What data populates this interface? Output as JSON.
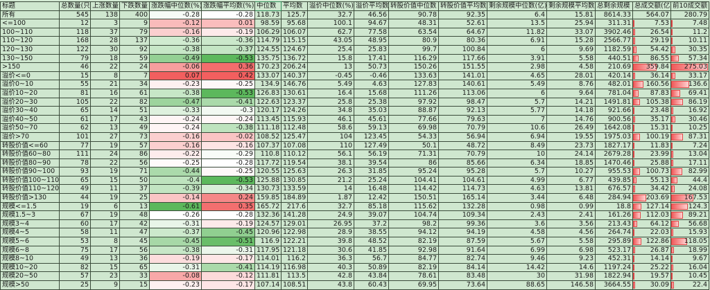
{
  "columns": [
    "标题",
    "总数量(只)",
    "上涨数量",
    "下跌数量",
    "涨跌幅中位数(%)",
    "涨跌幅平均数(%)",
    "中位数",
    "平均数",
    "溢价中位数(%)",
    "溢价平均数",
    "转股价值中位数",
    "转股价值平均数",
    "剩余规模中位数(亿)",
    "剩余规模平均数",
    "总剩余规模",
    "总成交额(亿)",
    "前10成交额"
  ],
  "heatmap_colors": {
    "low": "#5cb85c",
    "mid": "#ffffff",
    "high": "#f25f5f"
  },
  "databar_color": "#f05a5a",
  "rows": [
    [
      "所有",
      545,
      138,
      400,
      -0.28,
      -0.28,
      118.73,
      125.7,
      32.7,
      46.56,
      90.78,
      92.35,
      6.4,
      15.81,
      8614.33,
      564.07,
      280.79
    ],
    [
      "<=100",
      12,
      3,
      9,
      -0.12,
      0.01,
      98.59,
      95.68,
      100.1,
      94.67,
      48.31,
      52.61,
      13.5,
      25.94,
      311.31,
      7.53,
      7.48
    ],
    [
      "100~110",
      118,
      37,
      79,
      -0.16,
      -0.19,
      106.29,
      106.07,
      62.7,
      77.58,
      63.54,
      64.67,
      11.82,
      33.07,
      3902.46,
      26.54,
      11.2
    ],
    [
      "110~120",
      168,
      28,
      137,
      -0.36,
      -0.36,
      114.79,
      115.15,
      43.05,
      48.95,
      80.9,
      80.36,
      6.91,
      15.28,
      2566.77,
      29.19,
      10.11
    ],
    [
      "120~130",
      122,
      30,
      92,
      -0.38,
      -0.37,
      124.55,
      124.67,
      25.4,
      25.83,
      99.7,
      100.84,
      6,
      9.69,
      1182.59,
      54.42,
      30.35
    ],
    [
      "130~150",
      79,
      18,
      59,
      -0.49,
      -0.53,
      135.75,
      136.72,
      15.8,
      17.41,
      116.29,
      117.66,
      3.91,
      5.58,
      440.51,
      86.55,
      57.34
    ],
    [
      ">150",
      46,
      22,
      24,
      -0.06,
      0.36,
      170.23,
      206.24,
      13,
      50.73,
      150.26,
      151.55,
      2.98,
      4.58,
      210.69,
      359.84,
      275.03
    ],
    [
      "溢价<=0",
      15,
      8,
      7,
      0.07,
      0.42,
      133.07,
      140.37,
      -0.45,
      -0.46,
      133.63,
      141.01,
      4.65,
      28.01,
      420.14,
      36.14,
      33.17
    ],
    [
      "溢价0~10",
      55,
      21,
      34,
      -0.23,
      -0.25,
      134.9,
      146.76,
      5.49,
      4.63,
      127.83,
      140.61,
      5.49,
      8.76,
      482.01,
      160.56,
      136.6
    ],
    [
      "溢价10~20",
      81,
      16,
      61,
      -0.38,
      -0.53,
      126.83,
      130.61,
      16.4,
      15.68,
      111.26,
      113.06,
      6,
      9.64,
      781.04,
      87.83,
      69.41
    ],
    [
      "溢价20~30",
      105,
      22,
      82,
      -0.47,
      -0.41,
      122.63,
      123.37,
      25.8,
      25.38,
      97.92,
      98.47,
      5.7,
      14.21,
      1491.81,
      105.38,
      86.19
    ],
    [
      "溢价30~40",
      65,
      14,
      51,
      -0.33,
      -0.3,
      120.17,
      124.26,
      34.8,
      35.03,
      88.87,
      92.13,
      5.77,
      14.18,
      921.66,
      23.48,
      16.92
    ],
    [
      "溢价40~50",
      61,
      17,
      43,
      -0.24,
      -0.24,
      113.45,
      115.93,
      46.1,
      45.61,
      77.66,
      79.63,
      7,
      14.76,
      900.56,
      35.17,
      30.46
    ],
    [
      "溢价50~70",
      62,
      13,
      49,
      -0.24,
      -0.38,
      111.18,
      112.48,
      58.6,
      59.13,
      69.98,
      70.79,
      10.6,
      26.49,
      1642.08,
      15.31,
      10.25
    ],
    [
      "溢价>70",
      101,
      27,
      73,
      -0.16,
      -0.02,
      108.52,
      125.47,
      104,
      123.45,
      54.33,
      56.94,
      6.94,
      19.55,
      1975.03,
      100.19,
      87.31
    ],
    [
      "转股价值<=60",
      77,
      19,
      57,
      -0.16,
      -0.16,
      107.37,
      107.08,
      110,
      127.49,
      50.1,
      48.72,
      8.49,
      23.73,
      1827.17,
      11.83,
      7.24
    ],
    [
      "转股价值60~80",
      111,
      24,
      86,
      -0.22,
      -0.29,
      110.8,
      110.12,
      56.1,
      56.19,
      71.31,
      70.79,
      10,
      24.14,
      2679.28,
      23.99,
      13.04
    ],
    [
      "转股价值80~90",
      78,
      22,
      56,
      -0.25,
      -0.28,
      117.72,
      119.54,
      38.1,
      39.54,
      86,
      85.66,
      6.34,
      18.85,
      1470.46,
      25.88,
      17.11
    ],
    [
      "转股价值90~100",
      93,
      19,
      71,
      -0.44,
      -0.25,
      120.55,
      125.63,
      26.3,
      31.85,
      95.24,
      95.28,
      5.7,
      10.27,
      955.53,
      100.73,
      82.99
    ],
    [
      "转股价值100~110",
      65,
      15,
      50,
      -0.4,
      -0.53,
      125.88,
      130.85,
      21.2,
      25.24,
      104.41,
      104.61,
      4.99,
      6.77,
      439.85,
      55.13,
      44.4
    ],
    [
      "转股价值110~120",
      49,
      11,
      37,
      -0.39,
      -0.34,
      130.73,
      133.59,
      14,
      16.48,
      114.42,
      114.73,
      4.63,
      13.81,
      676.57,
      34.42,
      24.08
    ],
    [
      "转股价值>130",
      44,
      19,
      25,
      -0.14,
      0.24,
      159.85,
      184.89,
      1.87,
      12.42,
      150.51,
      165.14,
      3.44,
      6.48,
      284.94,
      203.69,
      167.53
    ],
    [
      "规模<=1.5",
      19,
      6,
      13,
      -0.61,
      0.35,
      165.72,
      217.6,
      32.7,
      85.18,
      115.62,
      132.28,
      0.98,
      0.99,
      18.8,
      127.14,
      124.3
    ],
    [
      "规模1.5~3",
      67,
      19,
      48,
      -0.26,
      -0.28,
      132.36,
      141.28,
      24.9,
      39.07,
      104.74,
      109.34,
      2.43,
      2.41,
      161.26,
      112.03,
      89.21
    ],
    [
      "规模3~4",
      60,
      17,
      42,
      -0.31,
      -0.19,
      124.57,
      129.01,
      26.95,
      37.2,
      98.2,
      99.36,
      3.6,
      3.56,
      213.43,
      64.12,
      56.68
    ],
    [
      "规模4~5",
      58,
      11,
      47,
      -0.37,
      -0.45,
      120.96,
      122.98,
      28.9,
      38.55,
      94.12,
      94.19,
      4.58,
      4.56,
      264.74,
      22.03,
      15.93
    ],
    [
      "规模5~6",
      53,
      8,
      45,
      -0.45,
      -0.51,
      116.9,
      122.21,
      39.8,
      48.52,
      82.19,
      87.59,
      5.67,
      5.58,
      295.89,
      122.86,
      118.05
    ],
    [
      "规模6~8",
      75,
      17,
      56,
      -0.38,
      -0.31,
      117.95,
      121.18,
      30.6,
      41.85,
      92.98,
      91.64,
      6.99,
      6.98,
      523.17,
      26.87,
      18.99
    ],
    [
      "规模8~10",
      49,
      13,
      36,
      -0.19,
      -0.17,
      114.01,
      116.2,
      36.3,
      56.7,
      84.77,
      82.74,
      9.46,
      9.23,
      452.31,
      14.14,
      9.67
    ],
    [
      "规模10~20",
      82,
      15,
      65,
      -0.31,
      -0.41,
      114.19,
      116.98,
      40.3,
      50.89,
      82.19,
      84.14,
      14.42,
      14.6,
      1197.24,
      25.22,
      16.04
    ],
    [
      "规模20~50",
      57,
      23,
      33,
      -0.08,
      -0.12,
      111.81,
      113.5,
      42.8,
      43.84,
      78.61,
      83.48,
      30,
      31.98,
      1822.94,
      19.57,
      10.45
    ],
    [
      "规模>50",
      25,
      9,
      15,
      -0.23,
      -0.17,
      107.14,
      108.51,
      43.8,
      60.43,
      69.95,
      73.64,
      88.65,
      146.58,
      3664.55,
      30.09,
      22.4
    ]
  ]
}
